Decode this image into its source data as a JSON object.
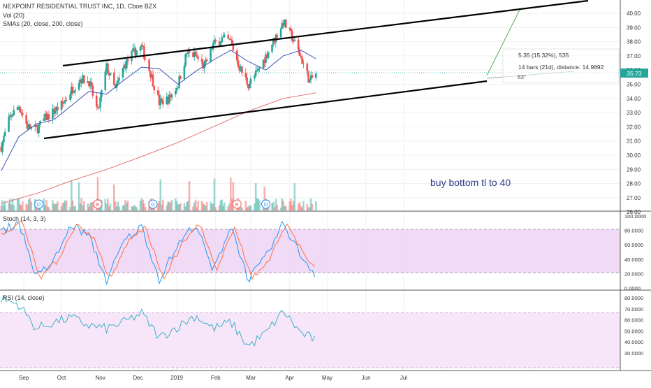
{
  "header": {
    "title": "NEXPOINT RESIDENTIAL TRUST INC, 1D, Cboe BZX",
    "vol_label": "Vol (20)",
    "sma_label": "SMAs (20, close, 200, close)"
  },
  "price_panel": {
    "current_price": "35.73",
    "measure_price": "5.35 (15.32%), 535",
    "measure_bars": "14 bars (21d), distance: 14.9892",
    "measure_angle": "63°",
    "annotation": "buy bottom tl to 40",
    "event_markers": [
      {
        "label": "D",
        "date": "Sep 13"
      },
      {
        "label": "E",
        "date": "Oct 30"
      },
      {
        "label": "D",
        "date": "Dec 13"
      },
      {
        "label": "E",
        "date": "Feb 18"
      },
      {
        "label": "D",
        "date": "Mar 13"
      }
    ],
    "colors": {
      "up": "#26a69a",
      "down": "#ef5350",
      "sma20": "#3f51b5",
      "sma200": "#e57373",
      "channel": "#000000"
    }
  },
  "stoch_panel": {
    "label": "Stoch (14, 3, 3)",
    "ticks": [
      "100.0000",
      "80.0000",
      "60.0000",
      "40.0000",
      "20.0000",
      "0.0000"
    ]
  },
  "rsi_panel": {
    "label": "RSI (14, close)",
    "ticks": [
      "80.0000",
      "70.0000",
      "60.0000",
      "50.0000",
      "40.0000",
      "30.0000"
    ]
  },
  "chart_data": {
    "type": "line",
    "title": "NEXPOINT RESIDENTIAL TRUST INC, 1D, Cboe BZX",
    "x_ticks": [
      "Sep",
      "Oct",
      "Nov",
      "Dec",
      "2019",
      "Feb",
      "Mar",
      "Apr",
      "May",
      "Jun",
      "Jul"
    ],
    "price_ticks": [
      "40.00",
      "39.00",
      "38.00",
      "37.00",
      "36.00",
      "35.00",
      "34.00",
      "33.00",
      "32.00",
      "31.00",
      "30.00",
      "29.00",
      "28.00",
      "27.00",
      "26.00"
    ],
    "price_ylim": [
      26.0,
      40.5
    ],
    "series": [
      {
        "name": "close",
        "x": [
          "Aug 14",
          "Aug 21",
          "Aug 28",
          "Sep 4",
          "Sep 11",
          "Sep 18",
          "Sep 25",
          "Oct 2",
          "Oct 9",
          "Oct 16",
          "Oct 23",
          "Oct 30",
          "Nov 6",
          "Nov 13",
          "Nov 20",
          "Nov 27",
          "Dec 4",
          "Dec 11",
          "Dec 18",
          "Dec 26",
          "Jan 2",
          "Jan 9",
          "Jan 16",
          "Jan 23",
          "Jan 30",
          "Feb 6",
          "Feb 13",
          "Feb 20",
          "Feb 27",
          "Mar 6",
          "Mar 13",
          "Mar 20",
          "Mar 27",
          "Apr 3",
          "Apr 10",
          "Apr 17",
          "Apr 22"
        ],
        "y": [
          30.6,
          32.7,
          33.5,
          32.0,
          31.8,
          32.6,
          33.1,
          33.6,
          34.6,
          35.4,
          35.2,
          33.0,
          36.2,
          34.6,
          36.3,
          37.2,
          37.6,
          35.8,
          33.7,
          34.0,
          35.0,
          37.2,
          37.0,
          36.2,
          37.8,
          38.2,
          38.0,
          36.2,
          35.0,
          35.8,
          37.0,
          38.2,
          39.4,
          38.3,
          36.9,
          35.2,
          35.73
        ]
      },
      {
        "name": "SMA 20",
        "x": [
          "Aug 14",
          "Aug 28",
          "Sep 11",
          "Sep 25",
          "Oct 9",
          "Oct 23",
          "Nov 6",
          "Nov 20",
          "Dec 4",
          "Dec 18",
          "Jan 2",
          "Jan 16",
          "Jan 30",
          "Feb 13",
          "Feb 27",
          "Mar 13",
          "Mar 27",
          "Apr 10",
          "Apr 22"
        ],
        "y": [
          28.9,
          31.3,
          32.2,
          32.5,
          33.5,
          34.5,
          34.3,
          35.3,
          36.2,
          36.1,
          35.0,
          35.9,
          36.7,
          37.4,
          36.6,
          36.0,
          37.0,
          37.4,
          36.8
        ]
      },
      {
        "name": "SMA 200",
        "x": [
          "Aug 14",
          "Sep 11",
          "Oct 9",
          "Nov 6",
          "Dec 4",
          "Jan 2",
          "Jan 30",
          "Feb 27",
          "Mar 27",
          "Apr 22"
        ],
        "y": [
          26.6,
          27.3,
          28.2,
          29.0,
          29.9,
          30.9,
          32.0,
          33.1,
          34.0,
          34.4
        ]
      },
      {
        "name": "Stoch %K",
        "x": [
          "Aug 14",
          "Aug 28",
          "Sep 11",
          "Sep 25",
          "Oct 9",
          "Oct 23",
          "Nov 6",
          "Nov 20",
          "Dec 4",
          "Dec 18",
          "Jan 2",
          "Jan 16",
          "Jan 30",
          "Feb 13",
          "Feb 27",
          "Mar 13",
          "Mar 27",
          "Apr 10",
          "Apr 22"
        ],
        "y": [
          78,
          92,
          15,
          38,
          88,
          72,
          10,
          65,
          85,
          12,
          60,
          90,
          22,
          88,
          12,
          42,
          90,
          45,
          18
        ]
      },
      {
        "name": "RSI",
        "x": [
          "Aug 14",
          "Aug 28",
          "Sep 11",
          "Sep 25",
          "Oct 9",
          "Oct 23",
          "Nov 6",
          "Nov 20",
          "Dec 4",
          "Dec 18",
          "Jan 2",
          "Jan 16",
          "Jan 30",
          "Feb 13",
          "Feb 27",
          "Mar 13",
          "Mar 27",
          "Apr 10",
          "Apr 22"
        ],
        "y": [
          79,
          74,
          52,
          58,
          62,
          55,
          52,
          58,
          66,
          44,
          54,
          64,
          52,
          58,
          36,
          48,
          68,
          48,
          42
        ]
      }
    ]
  }
}
